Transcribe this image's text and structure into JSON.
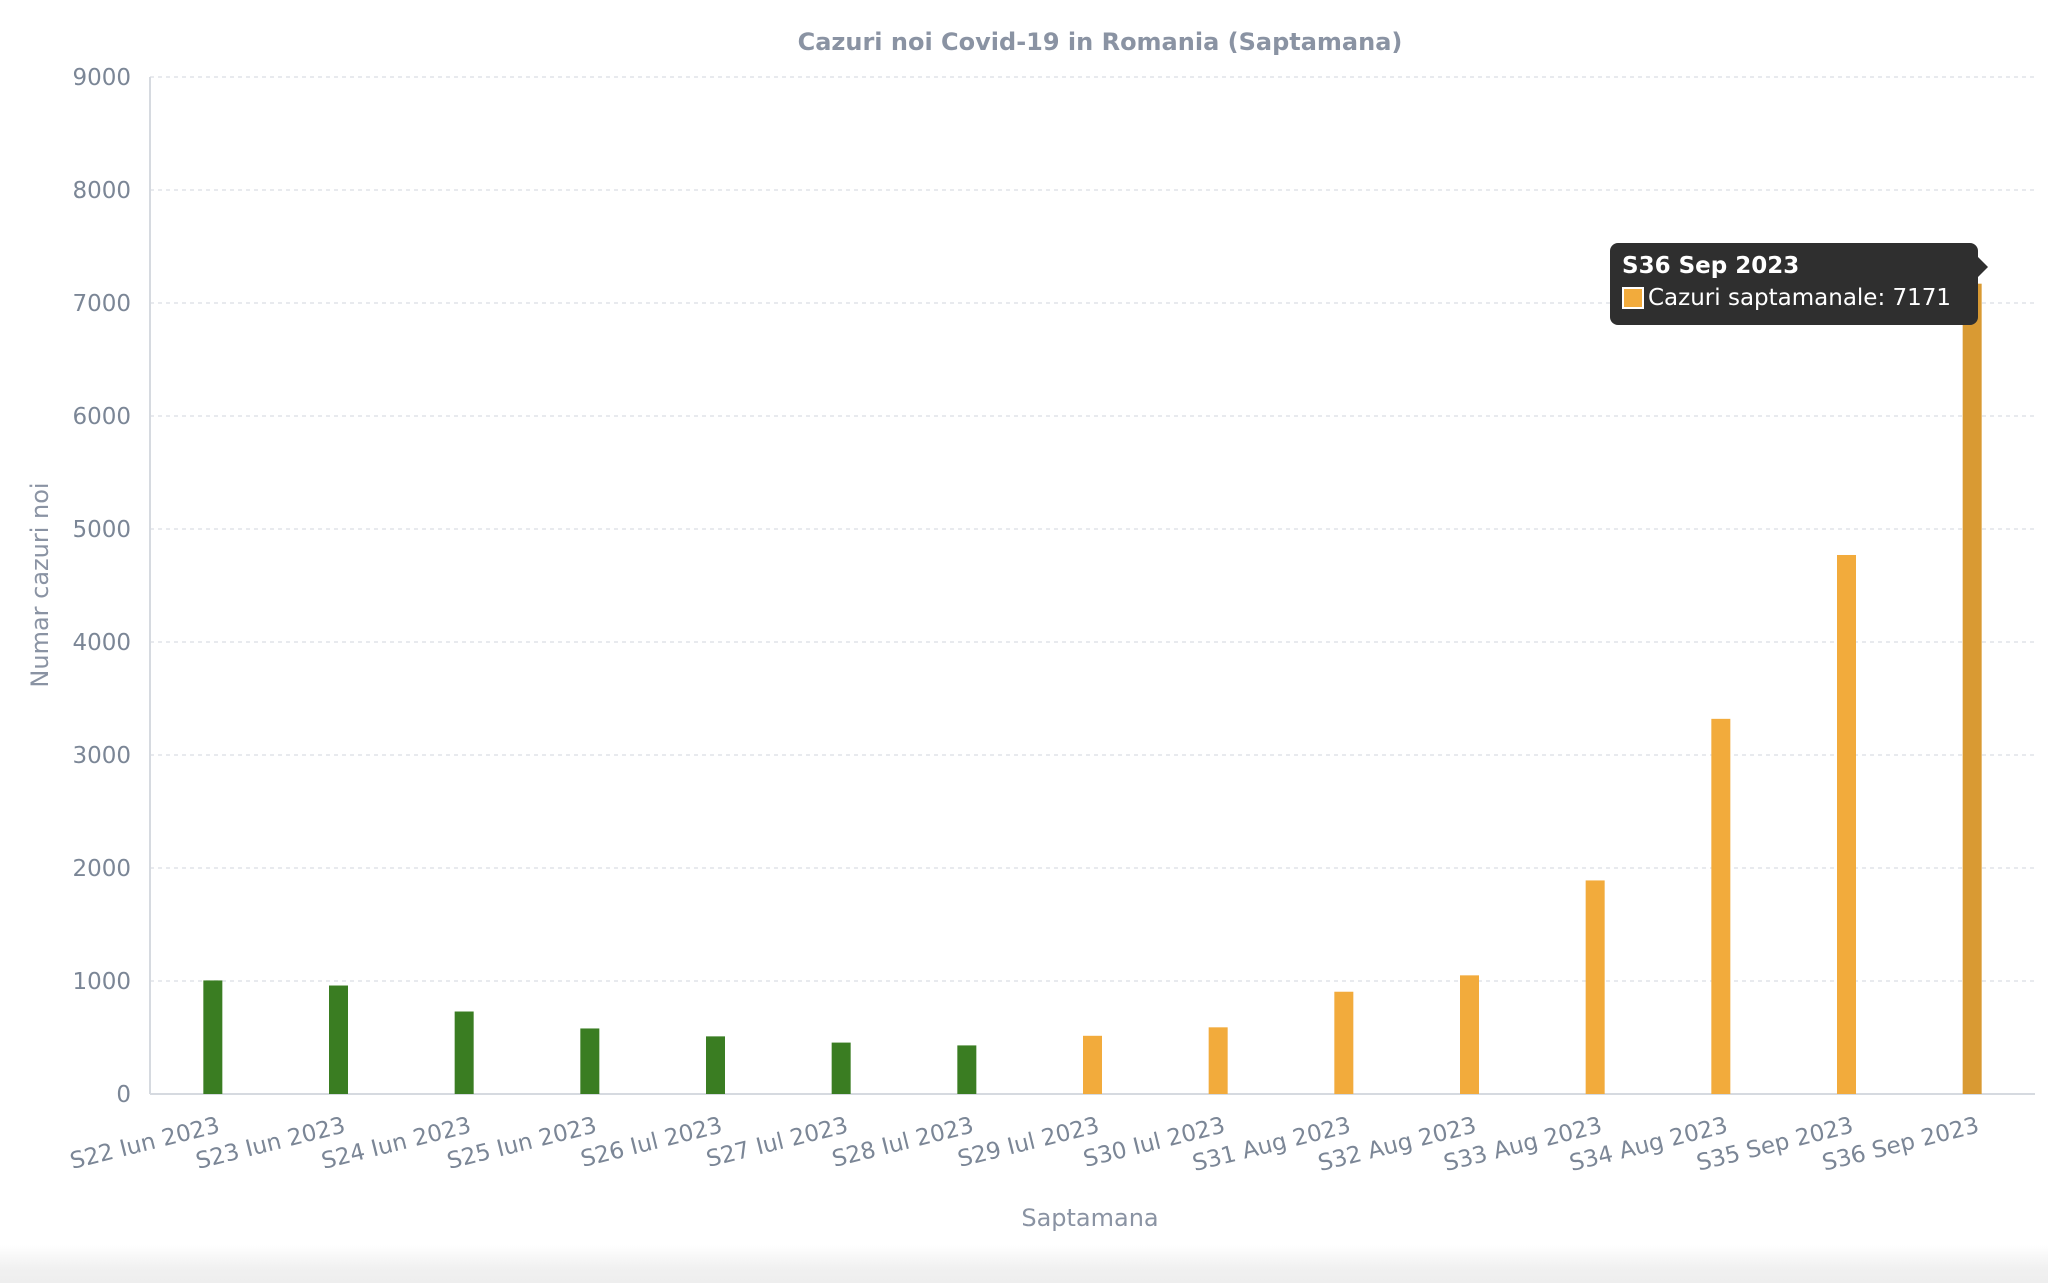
{
  "chart_data": {
    "type": "bar",
    "title": "Cazuri noi Covid-19 in Romania (Saptamana)",
    "xlabel": "Saptamana",
    "ylabel": "Numar cazuri noi",
    "ylim": [
      0,
      9000
    ],
    "yticks": [
      0,
      1000,
      2000,
      3000,
      4000,
      5000,
      6000,
      7000,
      8000,
      9000
    ],
    "grid": true,
    "categories": [
      "S22 Iun 2023",
      "S23 Iun 2023",
      "S24 Iun 2023",
      "S25 Iun 2023",
      "S26 Iul 2023",
      "S27 Iul 2023",
      "S28 Iul 2023",
      "S29 Iul 2023",
      "S30 Iul 2023",
      "S31 Aug 2023",
      "S32 Aug 2023",
      "S33 Aug 2023",
      "S34 Aug 2023",
      "S35 Sep 2023",
      "S36 Sep 2023"
    ],
    "series": [
      {
        "name": "Cazuri saptamanale",
        "values": [
          1005,
          960,
          730,
          580,
          510,
          455,
          430,
          515,
          590,
          905,
          1050,
          1890,
          3320,
          4770,
          7171
        ],
        "colors": [
          "#3a7d22",
          "#3a7d22",
          "#3a7d22",
          "#3a7d22",
          "#3a7d22",
          "#3a7d22",
          "#3a7d22",
          "#f2ab3c",
          "#f2ab3c",
          "#f2ab3c",
          "#f2ab3c",
          "#f2ab3c",
          "#f2ab3c",
          "#f2ab3c",
          "#d99a33"
        ]
      }
    ]
  },
  "tooltip": {
    "title": "S36 Sep 2023",
    "series_name": "Cazuri saptamanale",
    "value": "7171",
    "text": "Cazuri saptamanale: 7171",
    "swatch_color": "#f2ab3c"
  },
  "colors": {
    "green": "#3a7d22",
    "orange": "#f2ab3c",
    "highlight": "#d99a33",
    "title": "#8a93a3",
    "tooltip_bg": "#2f2f2f"
  }
}
